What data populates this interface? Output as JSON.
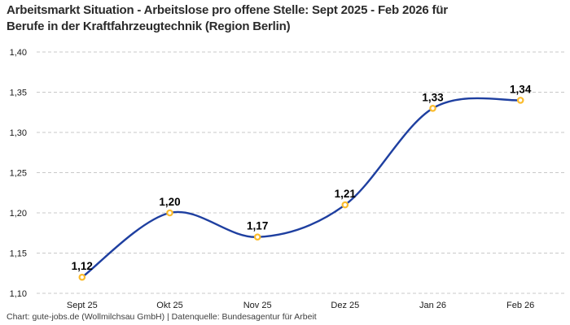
{
  "header": {
    "title_line1": "Arbeitsmarkt Situation - Arbeitslose pro offene Stelle: Sept 2025 - Feb 2026 für",
    "title_line2": "Berufe in der Kraftfahrzeugtechnik (Region Berlin)"
  },
  "chart_data": {
    "type": "line",
    "line_shape": "spline",
    "title": "Arbeitsmarkt Situation - Arbeitslose pro offene Stelle: Sept 2025 - Feb 2026 für Berufe in der Kraftfahrzeugtechnik (Region Berlin)",
    "categories": [
      "Sept 25",
      "Okt 25",
      "Nov 25",
      "Dez 25",
      "Jan 26",
      "Feb 26"
    ],
    "values": [
      1.12,
      1.2,
      1.17,
      1.21,
      1.33,
      1.34
    ],
    "data_labels": [
      "1,12",
      "1,20",
      "1,17",
      "1,21",
      "1,33",
      "1,34"
    ],
    "ylim": [
      1.1,
      1.4
    ],
    "yticks": [
      1.1,
      1.15,
      1.2,
      1.25,
      1.3,
      1.35,
      1.4
    ],
    "ytick_labels": [
      "1,10",
      "1,15",
      "1,20",
      "1,25",
      "1,30",
      "1,35",
      "1,40"
    ],
    "xlabel": "",
    "ylabel": "",
    "grid": "horizontal-dashed",
    "legend": "none",
    "colors": {
      "line": "#1e3fa0",
      "marker_ring": "#fbbc2d",
      "marker_fill": "#ffffff",
      "gridline": "#c8c8c8",
      "axis_text": "#1a1a1a",
      "data_label": "#000000"
    }
  },
  "footer": {
    "credit": "Chart: gute-jobs.de (Wollmilchsau GmbH) | Datenquelle: Bundesagentur für Arbeit"
  }
}
